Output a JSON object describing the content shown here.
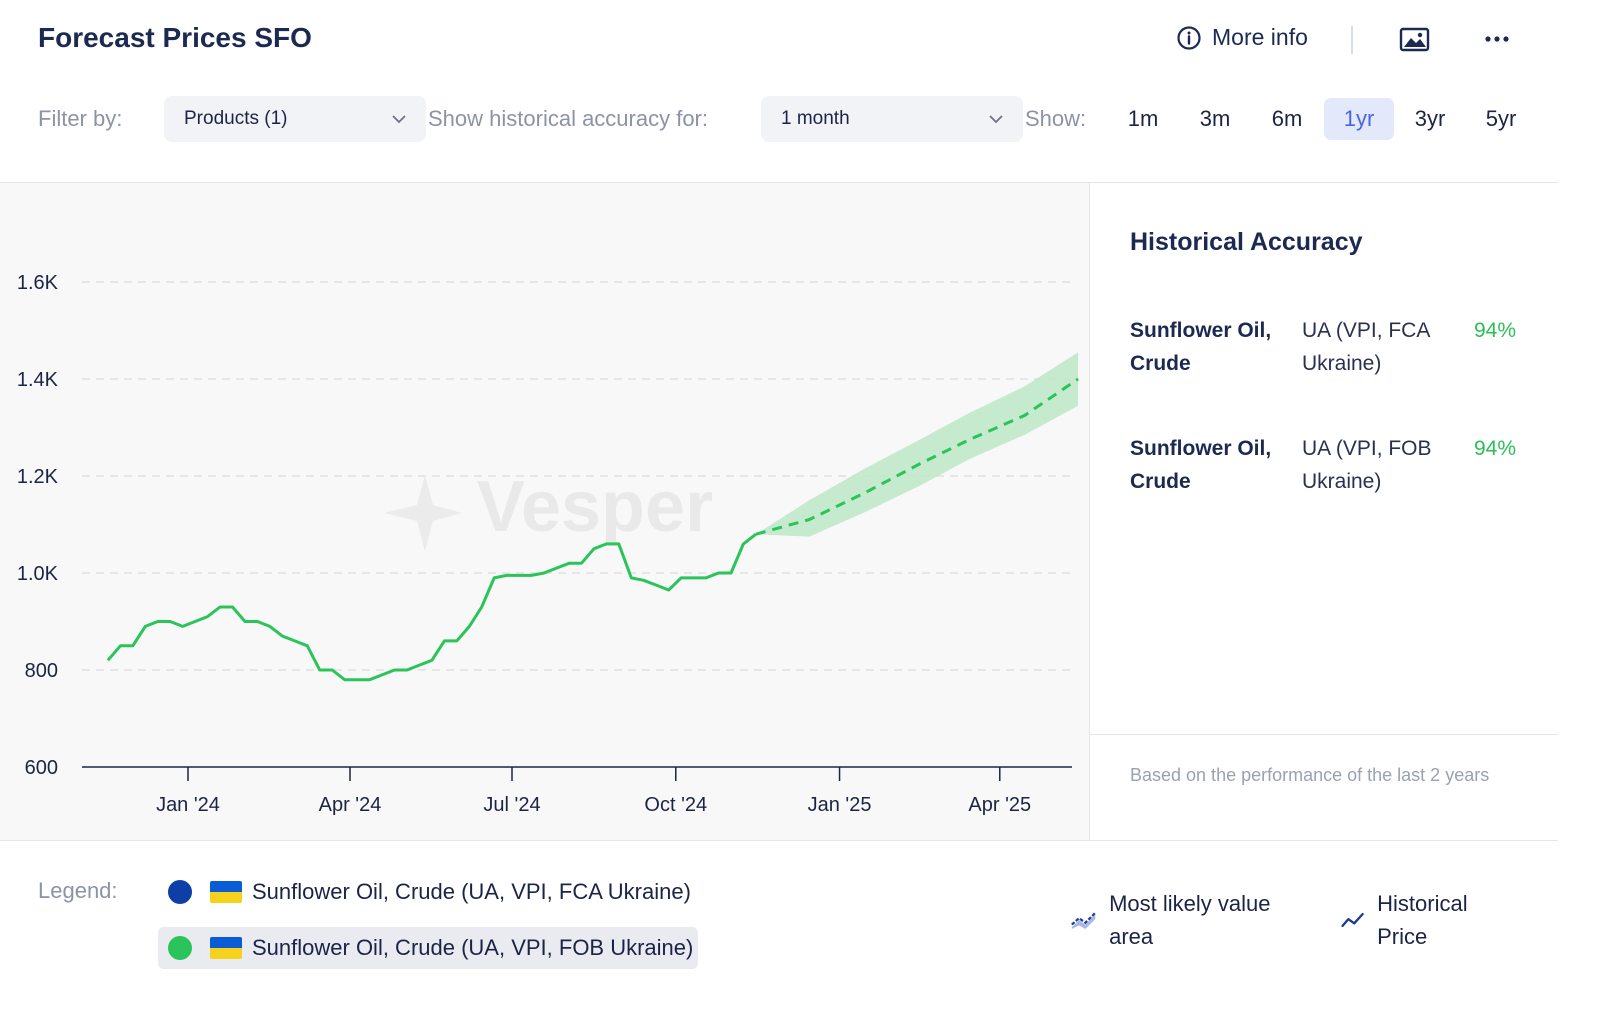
{
  "header": {
    "title": "Forecast Prices SFO",
    "more_info": "More info"
  },
  "filters": {
    "filter_label": "Filter by:",
    "products_value": "Products (1)",
    "hist_label": "Show historical accuracy for:",
    "month_value": "1 month",
    "show_label": "Show:",
    "ranges": [
      "1m",
      "3m",
      "6m",
      "1yr",
      "3yr",
      "5yr"
    ],
    "active_range": "1yr"
  },
  "chart_data": {
    "type": "line",
    "watermark": "Vesper",
    "y_ticks": [
      "600",
      "800",
      "1.0K",
      "1.2K",
      "1.4K",
      "1.6K"
    ],
    "ylim": [
      600,
      1700
    ],
    "x_ticks": [
      "Jan '24",
      "Apr '24",
      "Jul '24",
      "Oct '24",
      "Jan '25",
      "Apr '25"
    ],
    "series": [
      {
        "name": "Sunflower Oil, Crude (UA, VPI, FOB Ukraine)",
        "kind": "historical",
        "color": "#2bc45a",
        "points": [
          [
            "2023-11-17",
            820
          ],
          [
            "2023-11-24",
            850
          ],
          [
            "2023-12-01",
            850
          ],
          [
            "2023-12-08",
            890
          ],
          [
            "2023-12-15",
            900
          ],
          [
            "2023-12-22",
            900
          ],
          [
            "2023-12-29",
            890
          ],
          [
            "2024-01-05",
            900
          ],
          [
            "2024-01-12",
            910
          ],
          [
            "2024-01-19",
            930
          ],
          [
            "2024-01-26",
            930
          ],
          [
            "2024-02-02",
            900
          ],
          [
            "2024-02-09",
            900
          ],
          [
            "2024-02-16",
            890
          ],
          [
            "2024-02-23",
            870
          ],
          [
            "2024-03-01",
            860
          ],
          [
            "2024-03-08",
            850
          ],
          [
            "2024-03-15",
            800
          ],
          [
            "2024-03-22",
            800
          ],
          [
            "2024-03-29",
            780
          ],
          [
            "2024-04-05",
            780
          ],
          [
            "2024-04-12",
            780
          ],
          [
            "2024-04-19",
            790
          ],
          [
            "2024-04-26",
            800
          ],
          [
            "2024-05-03",
            800
          ],
          [
            "2024-05-10",
            810
          ],
          [
            "2024-05-17",
            820
          ],
          [
            "2024-05-24",
            860
          ],
          [
            "2024-05-31",
            860
          ],
          [
            "2024-06-07",
            890
          ],
          [
            "2024-06-14",
            930
          ],
          [
            "2024-06-21",
            990
          ],
          [
            "2024-06-28",
            995
          ],
          [
            "2024-07-05",
            995
          ],
          [
            "2024-07-12",
            995
          ],
          [
            "2024-07-19",
            1000
          ],
          [
            "2024-07-26",
            1010
          ],
          [
            "2024-08-02",
            1020
          ],
          [
            "2024-08-09",
            1020
          ],
          [
            "2024-08-16",
            1050
          ],
          [
            "2024-08-23",
            1060
          ],
          [
            "2024-08-30",
            1060
          ],
          [
            "2024-09-06",
            990
          ],
          [
            "2024-09-13",
            985
          ],
          [
            "2024-09-20",
            975
          ],
          [
            "2024-09-27",
            965
          ],
          [
            "2024-10-04",
            990
          ],
          [
            "2024-10-11",
            990
          ],
          [
            "2024-10-18",
            990
          ],
          [
            "2024-10-25",
            1000
          ],
          [
            "2024-11-01",
            1000
          ],
          [
            "2024-11-08",
            1060
          ],
          [
            "2024-11-15",
            1080
          ]
        ]
      },
      {
        "name": "Most likely value",
        "kind": "forecast",
        "color": "#2bc45a",
        "points": [
          [
            "2024-11-15",
            1080
          ],
          [
            "2024-12-15",
            1110
          ],
          [
            "2025-01-15",
            1165
          ],
          [
            "2025-02-15",
            1225
          ],
          [
            "2025-03-15",
            1275
          ],
          [
            "2025-04-15",
            1325
          ],
          [
            "2025-05-15",
            1400
          ]
        ],
        "band_upper": [
          1080,
          1150,
          1215,
          1275,
          1330,
          1385,
          1455
        ],
        "band_lower": [
          1080,
          1075,
          1125,
          1180,
          1235,
          1285,
          1345
        ]
      }
    ]
  },
  "accuracy": {
    "title": "Historical Accuracy",
    "rows": [
      {
        "name": "Sunflower Oil, Crude",
        "loc": "UA (VPI, FCA Ukraine)",
        "pct": "94%"
      },
      {
        "name": "Sunflower Oil, Crude",
        "loc": "UA (VPI, FOB Ukraine)",
        "pct": "94%"
      }
    ],
    "note": "Based on the performance of the last 2 years"
  },
  "legend": {
    "label": "Legend:",
    "items": [
      {
        "label": "Sunflower Oil, Crude (UA, VPI, FCA Ukraine)",
        "color": "#0e3fa6"
      },
      {
        "label": "Sunflower Oil, Crude (UA, VPI, FOB Ukraine)",
        "color": "#2bc45a"
      }
    ],
    "key_area": "Most likely value area",
    "key_price": "Historical Price"
  }
}
